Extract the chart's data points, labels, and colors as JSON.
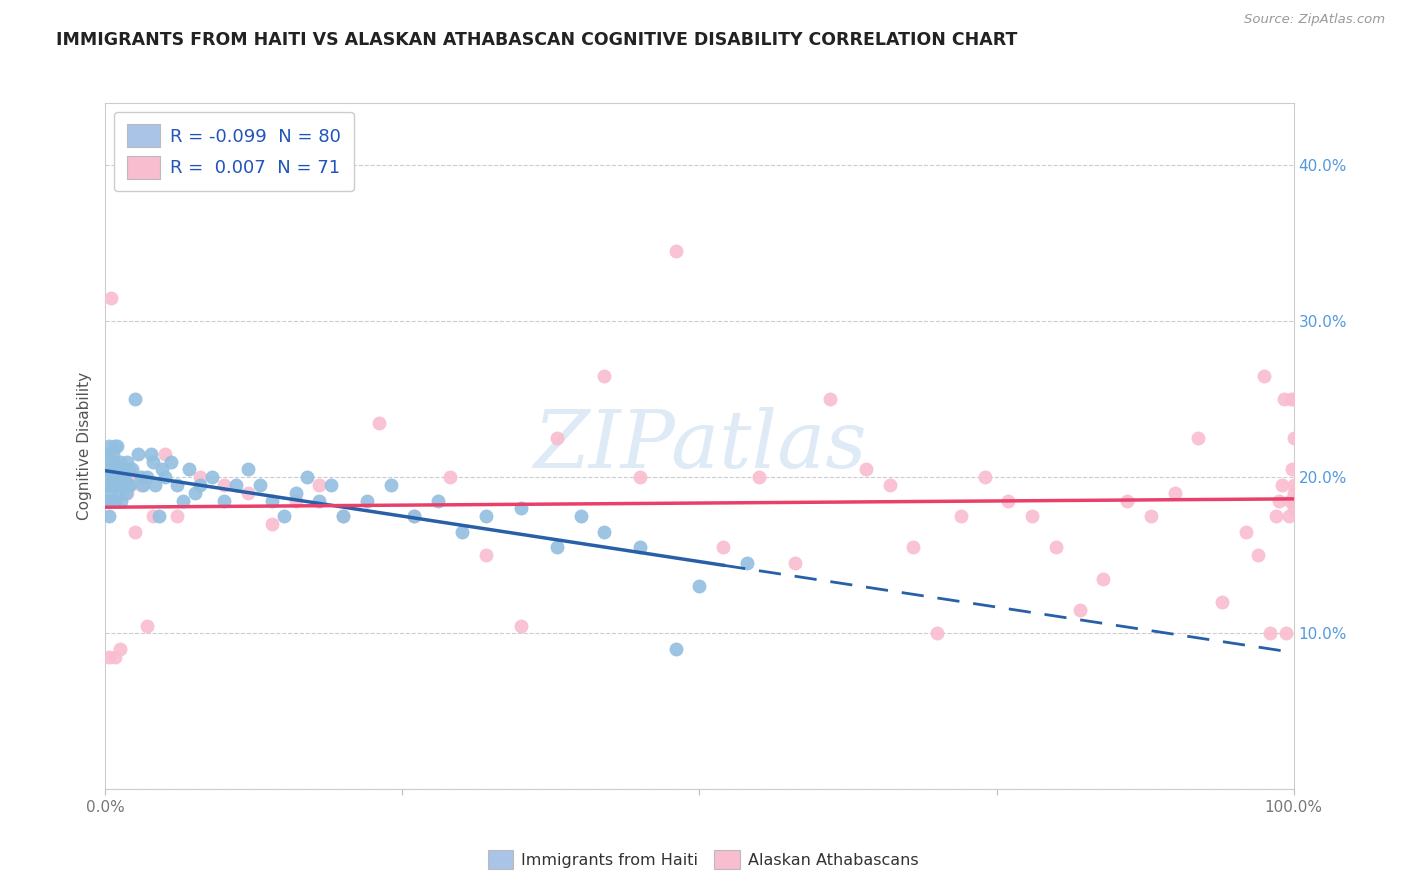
{
  "title": "IMMIGRANTS FROM HAITI VS ALASKAN ATHABASCAN COGNITIVE DISABILITY CORRELATION CHART",
  "source": "Source: ZipAtlas.com",
  "ylabel": "Cognitive Disability",
  "legend1_r": "-0.099",
  "legend1_n": "80",
  "legend2_r": "0.007",
  "legend2_n": "71",
  "legend1_color": "#aac4e8",
  "legend2_color": "#f9bdd0",
  "scatter_blue_color": "#92bfe0",
  "scatter_pink_color": "#f9bdd0",
  "line_blue_color": "#2860a8",
  "line_pink_color": "#e8406a",
  "right_axis_color": "#5599dd",
  "watermark_color": "#c8ddf0",
  "blue_scatter_x": [
    0.001,
    0.002,
    0.002,
    0.003,
    0.003,
    0.003,
    0.004,
    0.004,
    0.005,
    0.005,
    0.005,
    0.006,
    0.006,
    0.007,
    0.007,
    0.008,
    0.008,
    0.008,
    0.009,
    0.009,
    0.01,
    0.01,
    0.011,
    0.011,
    0.012,
    0.012,
    0.013,
    0.014,
    0.014,
    0.015,
    0.016,
    0.017,
    0.018,
    0.019,
    0.02,
    0.021,
    0.022,
    0.025,
    0.027,
    0.03,
    0.032,
    0.035,
    0.038,
    0.04,
    0.042,
    0.045,
    0.048,
    0.05,
    0.055,
    0.06,
    0.065,
    0.07,
    0.075,
    0.08,
    0.09,
    0.1,
    0.11,
    0.12,
    0.13,
    0.14,
    0.15,
    0.16,
    0.17,
    0.18,
    0.19,
    0.2,
    0.22,
    0.24,
    0.26,
    0.28,
    0.3,
    0.32,
    0.35,
    0.38,
    0.4,
    0.42,
    0.45,
    0.48,
    0.5,
    0.54
  ],
  "blue_scatter_y": [
    0.195,
    0.205,
    0.215,
    0.185,
    0.22,
    0.175,
    0.2,
    0.19,
    0.21,
    0.195,
    0.185,
    0.2,
    0.215,
    0.195,
    0.21,
    0.2,
    0.22,
    0.185,
    0.195,
    0.205,
    0.195,
    0.22,
    0.2,
    0.19,
    0.21,
    0.195,
    0.185,
    0.205,
    0.2,
    0.195,
    0.2,
    0.19,
    0.21,
    0.195,
    0.205,
    0.195,
    0.205,
    0.25,
    0.215,
    0.2,
    0.195,
    0.2,
    0.215,
    0.21,
    0.195,
    0.175,
    0.205,
    0.2,
    0.21,
    0.195,
    0.185,
    0.205,
    0.19,
    0.195,
    0.2,
    0.185,
    0.195,
    0.205,
    0.195,
    0.185,
    0.175,
    0.19,
    0.2,
    0.185,
    0.195,
    0.175,
    0.185,
    0.195,
    0.175,
    0.185,
    0.165,
    0.175,
    0.18,
    0.155,
    0.175,
    0.165,
    0.155,
    0.09,
    0.13,
    0.145
  ],
  "pink_scatter_x": [
    0.002,
    0.003,
    0.005,
    0.008,
    0.01,
    0.012,
    0.015,
    0.018,
    0.02,
    0.025,
    0.03,
    0.035,
    0.04,
    0.05,
    0.06,
    0.08,
    0.1,
    0.12,
    0.14,
    0.16,
    0.18,
    0.2,
    0.23,
    0.26,
    0.29,
    0.32,
    0.35,
    0.38,
    0.42,
    0.45,
    0.48,
    0.52,
    0.55,
    0.58,
    0.61,
    0.64,
    0.66,
    0.68,
    0.7,
    0.72,
    0.74,
    0.76,
    0.78,
    0.8,
    0.82,
    0.84,
    0.86,
    0.88,
    0.9,
    0.92,
    0.94,
    0.96,
    0.97,
    0.975,
    0.98,
    0.985,
    0.988,
    0.99,
    0.992,
    0.994,
    0.996,
    0.997,
    0.998,
    0.999,
    1.0,
    1.0,
    1.0,
    1.0,
    1.0,
    1.0,
    1.0
  ],
  "pink_scatter_y": [
    0.195,
    0.085,
    0.315,
    0.085,
    0.195,
    0.09,
    0.2,
    0.19,
    0.2,
    0.165,
    0.195,
    0.105,
    0.175,
    0.215,
    0.175,
    0.2,
    0.195,
    0.19,
    0.17,
    0.185,
    0.195,
    0.175,
    0.235,
    0.175,
    0.2,
    0.15,
    0.105,
    0.225,
    0.265,
    0.2,
    0.345,
    0.155,
    0.2,
    0.145,
    0.25,
    0.205,
    0.195,
    0.155,
    0.1,
    0.175,
    0.2,
    0.185,
    0.175,
    0.155,
    0.115,
    0.135,
    0.185,
    0.175,
    0.19,
    0.225,
    0.12,
    0.165,
    0.15,
    0.265,
    0.1,
    0.175,
    0.185,
    0.195,
    0.25,
    0.1,
    0.175,
    0.185,
    0.25,
    0.205,
    0.195,
    0.18,
    0.19,
    0.225,
    0.185,
    0.25,
    0.185
  ],
  "y_range": [
    0.0,
    0.44
  ],
  "x_range": [
    0.0,
    1.0
  ],
  "yticks": [
    0.0,
    0.1,
    0.2,
    0.3,
    0.4
  ],
  "ytick_labels_right": [
    "",
    "10.0%",
    "20.0%",
    "30.0%",
    "40.0%"
  ],
  "xticks": [
    0.0,
    0.25,
    0.5,
    0.75,
    1.0
  ],
  "xtick_labels": [
    "0.0%",
    "",
    "",
    "",
    "100.0%"
  ],
  "line_solid_end": 0.52,
  "bottom_legend1": "Immigrants from Haiti",
  "bottom_legend2": "Alaskan Athabascans"
}
